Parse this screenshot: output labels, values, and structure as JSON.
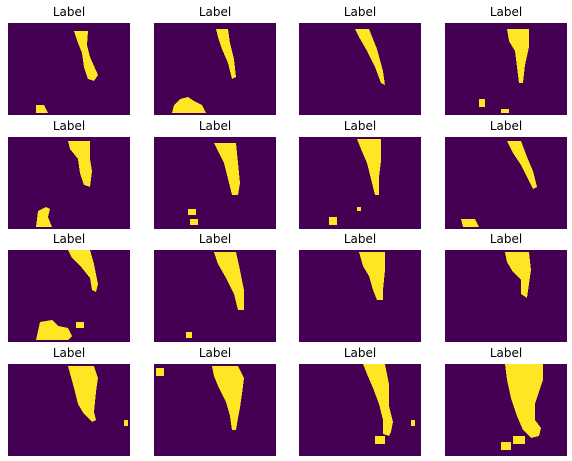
{
  "colors": {
    "background": "#440154",
    "foreground": "#fde725"
  },
  "panels": [
    {
      "title": "Label",
      "shapes": [
        "66,8 80,8 79,22 82,34 90,52 86,58 80,56 76,44 74,30 70,20",
        "28,82 36,82 40,90 28,90"
      ]
    },
    {
      "title": "Label",
      "shapes": [
        "62,6 74,6 76,20 80,36 82,54 78,56 74,40 68,26 64,14",
        "20,82 26,76 34,74 40,78 48,82 52,90 18,90"
      ]
    },
    {
      "title": "Label",
      "shapes": [
        "56,6 70,6 78,26 84,48 86,62 82,60 76,44 68,28 60,14"
      ]
    },
    {
      "title": "Label",
      "shapes": [
        "62,6 84,6 84,24 80,42 78,60 74,60 72,44 70,28 64,18",
        "34,76 40,76 40,84 34,84",
        "56,86 64,86 64,90 56,90"
      ]
    },
    {
      "title": "Label",
      "shapes": [
        "60,4 82,4 82,22 84,34 82,50 76,48 72,36 70,22 62,12",
        "30,74 38,70 42,72 40,80 44,90 28,90"
      ]
    },
    {
      "title": "Label",
      "shapes": [
        "60,6 82,6 84,26 86,46 84,58 78,58 74,42 70,26 64,14",
        "34,72 42,72 42,78 34,78",
        "36,82 44,82 44,88 36,88"
      ]
    },
    {
      "title": "Label",
      "shapes": [
        "58,2 82,2 82,24 80,40 80,58 76,58 72,42 68,26 62,12",
        "30,80 38,80 38,88 30,88",
        "58,70 62,70 62,74 58,74"
      ]
    },
    {
      "title": "Label",
      "shapes": [
        "62,4 76,4 82,20 88,34 92,50 88,52 82,40 76,28 68,16",
        "16,82 30,82 34,90 18,90"
      ]
    },
    {
      "title": "Label",
      "shapes": [
        "60,0 82,0 86,14 90,34 88,42 84,40 82,28 74,18 64,8",
        "32,72 44,70 50,76 60,78 64,86 60,90 28,90",
        "68,72 76,72 76,78 68,78"
      ]
    },
    {
      "title": "Label",
      "shapes": [
        "60,2 82,2 86,20 90,40 90,60 84,60 80,44 72,28 64,14",
        "32,82 38,82 38,88 32,88"
      ]
    },
    {
      "title": "Label",
      "shapes": [
        "60,2 86,2 86,20 84,40 84,50 78,50 74,40 70,26 64,16"
      ]
    },
    {
      "title": "Label",
      "shapes": [
        "60,2 84,2 86,20 84,34 82,48 76,44 76,30 68,22 62,12"
      ]
    },
    {
      "title": "Label",
      "shapes": [
        "60,2 86,2 90,14 88,28 86,48 88,56 84,58 76,50 70,40 66,24",
        "116,56 120,56 120,62 116,62"
      ]
    },
    {
      "title": "Label",
      "shapes": [
        "58,2 84,2 90,14 88,30 86,44 84,54 82,66 78,66 76,52 72,38 64,22 60,12",
        "2,4 10,4 10,12 2,12"
      ]
    },
    {
      "title": "Label",
      "shapes": [
        "64,0 86,0 90,20 90,42 94,58 92,68 90,72 84,70 84,56 80,40 74,24 68,10",
        "112,56 116,56 116,62 112,62",
        "76,72 86,72 86,80 76,80"
      ]
    },
    {
      "title": "Label",
      "shapes": [
        "60,0 98,0 98,16 94,28 90,40 90,56 96,64 94,72 86,74 78,66 72,52 66,34 62,16",
        "68,72 80,72 80,80 68,80",
        "56,78 66,78 66,86 56,86"
      ]
    }
  ]
}
